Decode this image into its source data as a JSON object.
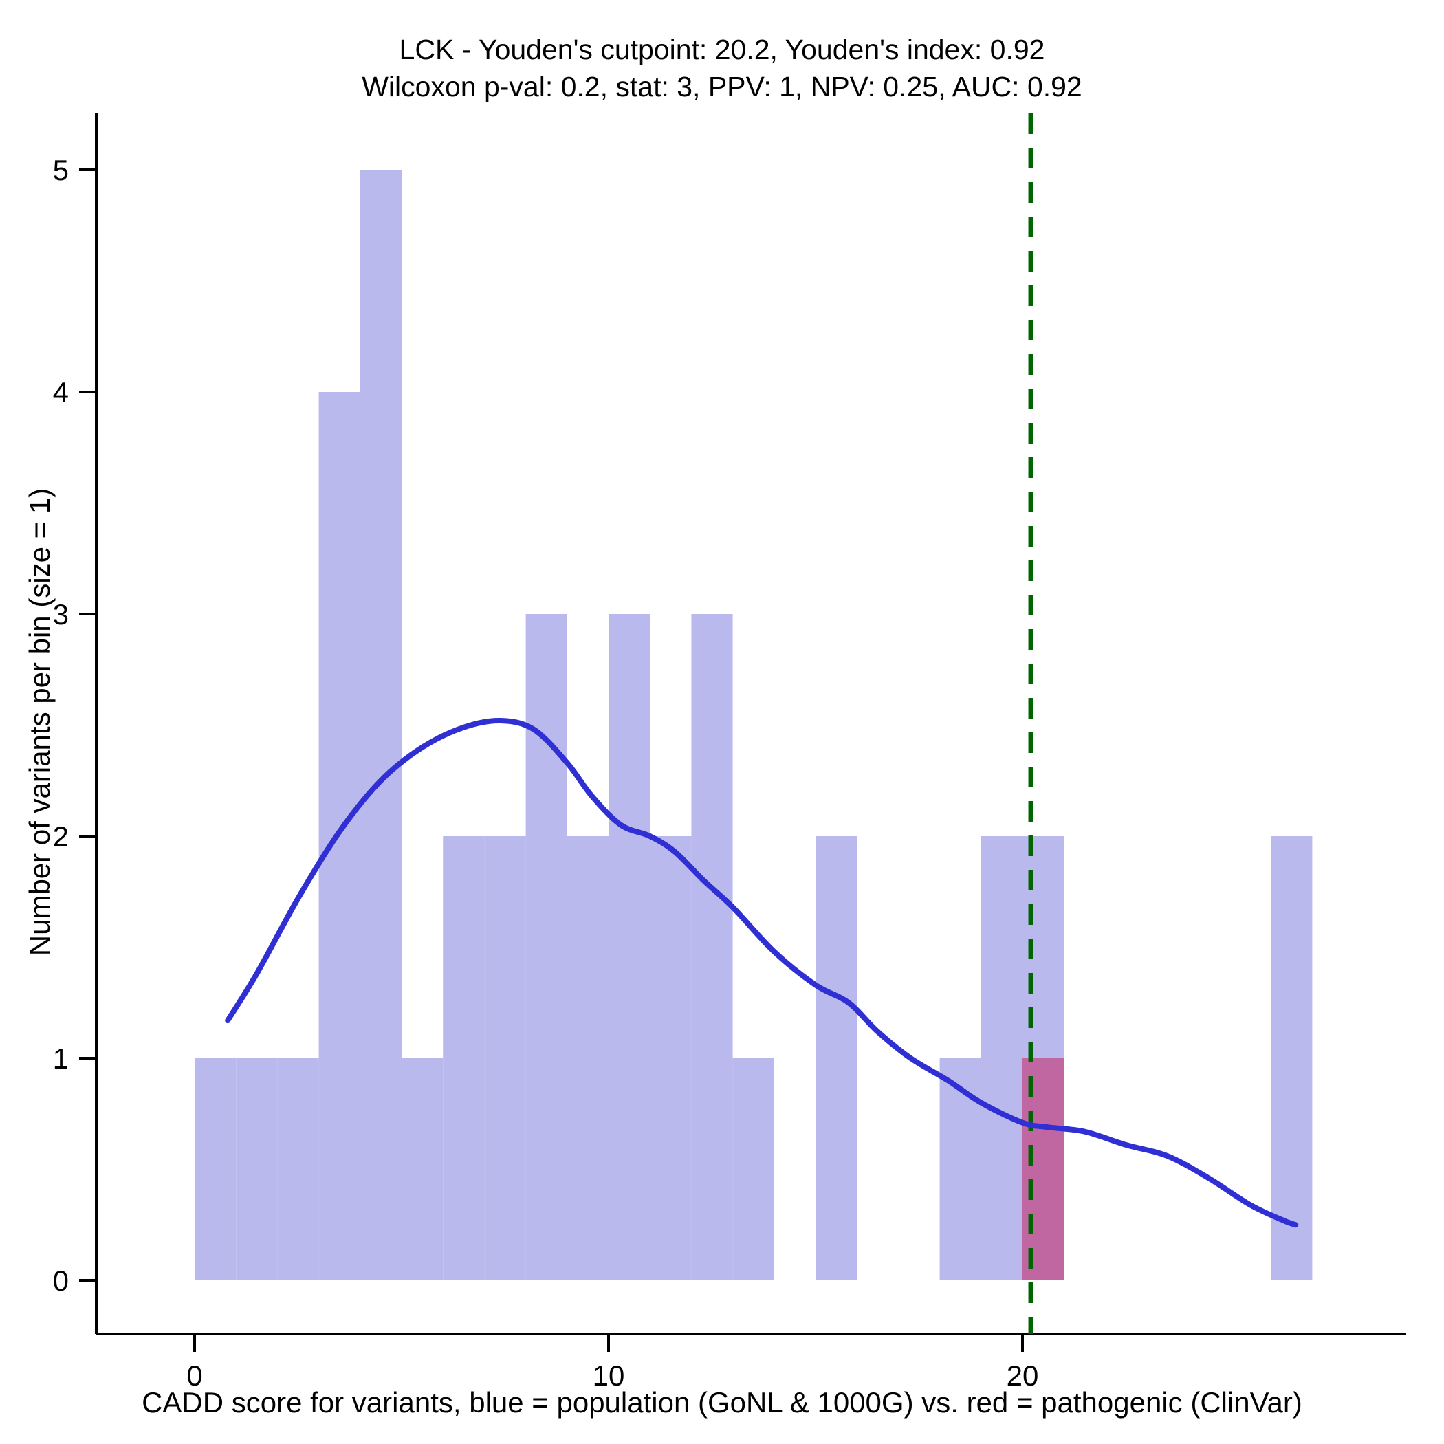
{
  "title": {
    "line1": "LCK - Youden's cutpoint: 20.2, Youden's index: 0.92",
    "line2": "Wilcoxon p-val: 0.2, stat: 3, PPV: 1, NPV: 0.25, AUC: 0.92"
  },
  "x_axis": {
    "label": "CADD score for variants, blue = population (GoNL & 1000G) vs. red = pathogenic (ClinVar)",
    "ticks": [
      0,
      10,
      20
    ]
  },
  "y_axis": {
    "label": "Number of variants per bin (size = 1)",
    "ticks": [
      0,
      1,
      2,
      3,
      4,
      5
    ]
  },
  "chart_data": {
    "type": "bar",
    "subtype": "histogram-with-density",
    "title": "LCK - Youden's cutpoint: 20.2, Youden's index: 0.92 / Wilcoxon p-val: 0.2, stat: 3, PPV: 1, NPV: 0.25, AUC: 0.92",
    "xlabel": "CADD score for variants, blue = population (GoNL & 1000G) vs. red = pathogenic (ClinVar)",
    "ylabel": "Number of variants per bin (size = 1)",
    "xlim": [
      -2.4,
      29.2
    ],
    "ylim": [
      0,
      5
    ],
    "bin_size": 1,
    "grid": false,
    "legend_position": "none",
    "stats": {
      "gene": "LCK",
      "youdens_cutpoint": 20.2,
      "youdens_index": 0.92,
      "wilcoxon_p_val": 0.2,
      "wilcoxon_stat": 3,
      "ppv": 1,
      "npv": 0.25,
      "auc": 0.92
    },
    "series": [
      {
        "name": "population (GoNL & 1000G)",
        "color": "#b9b9ee",
        "bins": [
          {
            "x": 0,
            "count": 1
          },
          {
            "x": 1,
            "count": 1
          },
          {
            "x": 2,
            "count": 1
          },
          {
            "x": 3,
            "count": 4
          },
          {
            "x": 4,
            "count": 5
          },
          {
            "x": 5,
            "count": 1
          },
          {
            "x": 6,
            "count": 2
          },
          {
            "x": 7,
            "count": 2
          },
          {
            "x": 8,
            "count": 3
          },
          {
            "x": 9,
            "count": 2
          },
          {
            "x": 10,
            "count": 3
          },
          {
            "x": 11,
            "count": 2
          },
          {
            "x": 12,
            "count": 3
          },
          {
            "x": 13,
            "count": 1
          },
          {
            "x": 15,
            "count": 2
          },
          {
            "x": 18,
            "count": 1
          },
          {
            "x": 19,
            "count": 2
          },
          {
            "x": 20,
            "count": 2
          },
          {
            "x": 26,
            "count": 2
          }
        ]
      },
      {
        "name": "pathogenic (ClinVar)",
        "color": "rgba(199,21,86,0.5)",
        "bins": [
          {
            "x": 20,
            "count": 1
          }
        ]
      }
    ],
    "cutpoint_line": {
      "x": 20.2,
      "color": "#006400",
      "style": "dashed"
    },
    "density_curve": {
      "color": "#2f2fd3",
      "points": [
        [
          0.8,
          1.17
        ],
        [
          1.5,
          1.38
        ],
        [
          2.5,
          1.72
        ],
        [
          3.5,
          2.02
        ],
        [
          4.5,
          2.25
        ],
        [
          5.5,
          2.4
        ],
        [
          6.5,
          2.49
        ],
        [
          7.4,
          2.52
        ],
        [
          8.2,
          2.48
        ],
        [
          9.0,
          2.33
        ],
        [
          9.6,
          2.18
        ],
        [
          10.3,
          2.05
        ],
        [
          11.0,
          2.0
        ],
        [
          11.6,
          1.93
        ],
        [
          12.3,
          1.8
        ],
        [
          13.0,
          1.68
        ],
        [
          14.0,
          1.48
        ],
        [
          15.0,
          1.33
        ],
        [
          15.8,
          1.25
        ],
        [
          16.5,
          1.12
        ],
        [
          17.3,
          1.0
        ],
        [
          18.2,
          0.9
        ],
        [
          19.0,
          0.8
        ],
        [
          20.0,
          0.71
        ],
        [
          20.6,
          0.69
        ],
        [
          21.5,
          0.67
        ],
        [
          22.5,
          0.61
        ],
        [
          23.5,
          0.56
        ],
        [
          24.5,
          0.46
        ],
        [
          25.5,
          0.34
        ],
        [
          26.3,
          0.27
        ],
        [
          26.6,
          0.25
        ]
      ]
    },
    "axis_color": "#000000"
  }
}
